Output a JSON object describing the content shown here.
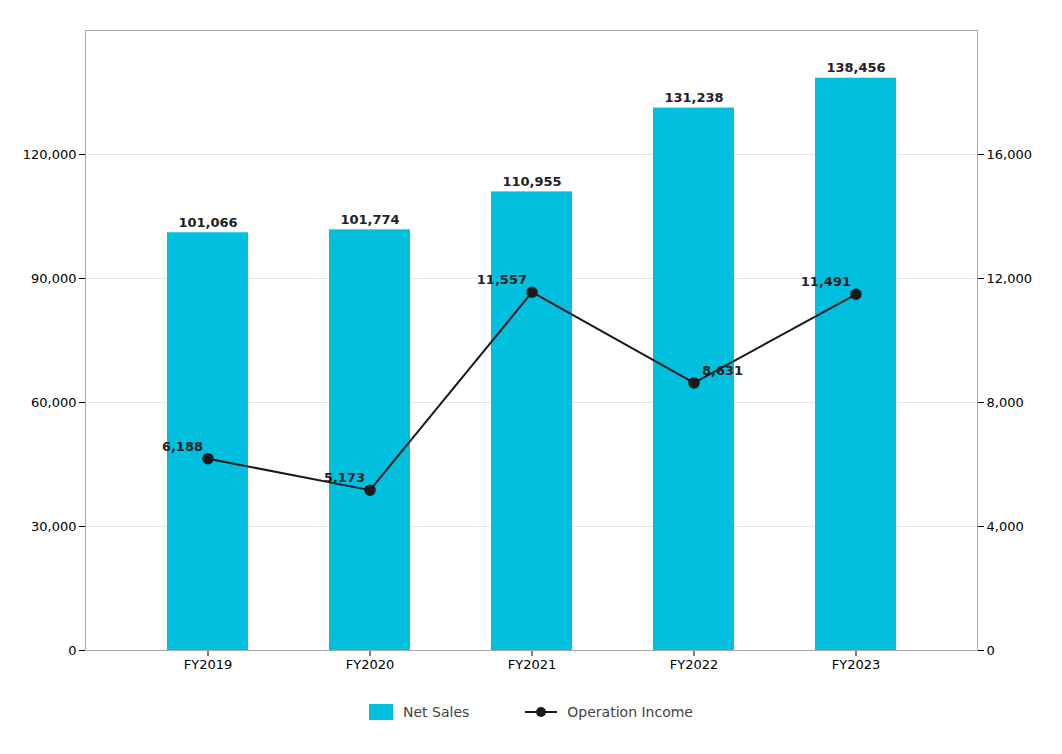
{
  "chart_data": {
    "type": "bar",
    "categories": [
      "FY2019",
      "FY2020",
      "FY2021",
      "FY2022",
      "FY2023"
    ],
    "series": [
      {
        "name": "Net Sales",
        "type": "bar",
        "color": "#00BFDF",
        "values": [
          101066,
          101774,
          110955,
          131238,
          138456
        ],
        "value_labels": [
          "101,066",
          "101,774",
          "110,955",
          "131,238",
          "138,456"
        ]
      },
      {
        "name": "Operation Income",
        "type": "line",
        "axis": "y2",
        "color": "#1a1a1a",
        "marker": "circle",
        "values": [
          6188,
          5173,
          11557,
          8631,
          11491
        ],
        "value_labels": [
          "6,188",
          "5,173",
          "11,557",
          "8,631",
          "11,491"
        ]
      }
    ],
    "ylim": [
      0,
      150000
    ],
    "yticks": [
      0,
      {
        "value": 30000,
        "label": "30,000"
      },
      {
        "value": 60000,
        "label": "60,000"
      },
      {
        "value": 90000,
        "label": "90,000"
      },
      {
        "value": 120000,
        "label": "120,000"
      }
    ],
    "y2lim": [
      0,
      20000
    ],
    "y2ticks": [
      0,
      {
        "value": 4000,
        "label": "4,000"
      },
      {
        "value": 8000,
        "label": "8,000"
      },
      {
        "value": 12000,
        "label": "12,000"
      },
      {
        "value": 16000,
        "label": "16,000"
      }
    ],
    "grid": true,
    "data_labels": true,
    "legend": "bottom"
  }
}
